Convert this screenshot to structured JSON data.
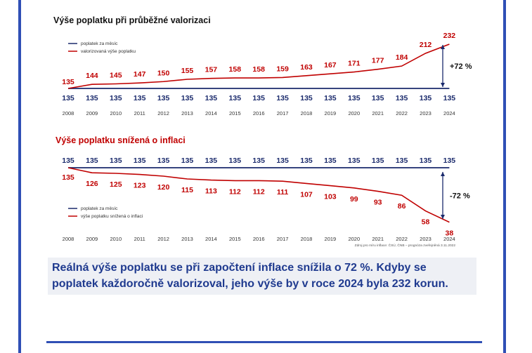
{
  "colors": {
    "frame": "#2f4fb5",
    "navy": "#1a2a6c",
    "red": "#c00000",
    "caption": "#1f3a8f"
  },
  "chart_data": [
    {
      "type": "line",
      "title": "Výše poplatku při průběžné valorizaci",
      "categories": [
        "2008",
        "2009",
        "2010",
        "2011",
        "2012",
        "2013",
        "2014",
        "2015",
        "2016",
        "2017",
        "2018",
        "2019",
        "2020",
        "2021",
        "2022",
        "2023",
        "2024"
      ],
      "series": [
        {
          "name": "poplatek za měsíc",
          "color": "#1a2a6c",
          "values": [
            135,
            135,
            135,
            135,
            135,
            135,
            135,
            135,
            135,
            135,
            135,
            135,
            135,
            135,
            135,
            135,
            135
          ]
        },
        {
          "name": "valorizovaná výše poplatku",
          "color": "#c00000",
          "values": [
            135,
            144,
            145,
            147,
            150,
            155,
            157,
            158,
            158,
            159,
            163,
            167,
            171,
            177,
            184,
            212,
            232
          ]
        }
      ],
      "legend": "top-left",
      "annotation": "+72 %"
    },
    {
      "type": "line",
      "title": "Výše poplatku snížená o inflaci",
      "categories": [
        "2008",
        "2009",
        "2010",
        "2011",
        "2012",
        "2013",
        "2014",
        "2015",
        "2016",
        "2017",
        "2018",
        "2019",
        "2020",
        "2021",
        "2022",
        "2023",
        "2024"
      ],
      "series": [
        {
          "name": "poplatek za měsíc",
          "color": "#1a2a6c",
          "values": [
            135,
            135,
            135,
            135,
            135,
            135,
            135,
            135,
            135,
            135,
            135,
            135,
            135,
            135,
            135,
            135,
            135
          ]
        },
        {
          "name": "výše poplatku snížená o inflaci",
          "color": "#c00000",
          "values": [
            135,
            126,
            125,
            123,
            120,
            115,
            113,
            112,
            112,
            111,
            107,
            103,
            99,
            93,
            86,
            58,
            38
          ]
        }
      ],
      "legend": "bottom-left",
      "annotation": "-72 %",
      "source_note": "Zdroj pro míru inflace: ČSÚ, ČNB – prognóza zveřejněná 3.11.2022"
    }
  ],
  "caption": "Reálná výše poplatku se při započtení inflace snížila o 72 %. Kdyby se poplatek každoročně valorizoval, jeho výše by v roce 2024 byla 232 korun."
}
